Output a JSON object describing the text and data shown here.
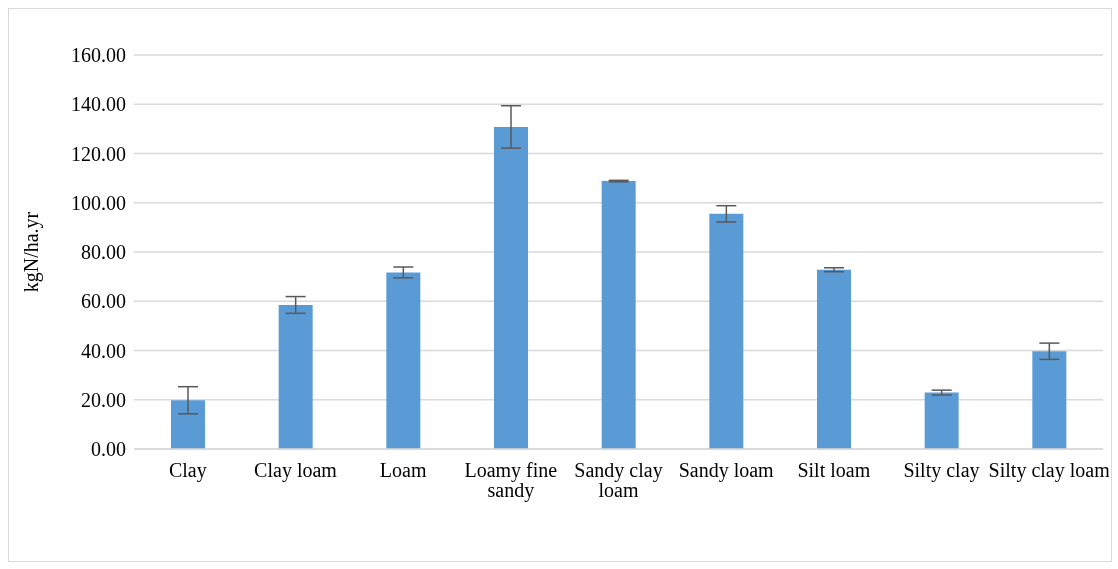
{
  "chart_data": {
    "type": "bar",
    "ylabel": "kgN/ha.yr",
    "categories": [
      "Clay",
      "Clay loam",
      "Loam",
      "Loamy fine sandy",
      "Sandy clay loam",
      "Sandy loam",
      "Silt loam",
      "Silty clay",
      "Silty clay loam"
    ],
    "values": [
      19.8,
      58.5,
      71.7,
      130.8,
      108.8,
      95.5,
      72.8,
      22.9,
      39.7
    ],
    "errors": [
      5.5,
      3.4,
      2.2,
      8.6,
      0.3,
      3.3,
      0.8,
      1.0,
      3.3
    ],
    "color": "#5b9bd5",
    "ylim": [
      0,
      160
    ],
    "yticks": [
      {
        "value": 0,
        "label": "0.00"
      },
      {
        "value": 20,
        "label": "20.00"
      },
      {
        "value": 40,
        "label": "40.00"
      },
      {
        "value": 60,
        "label": "60.00"
      },
      {
        "value": 80,
        "label": "80.00"
      },
      {
        "value": 100,
        "label": "100.00"
      },
      {
        "value": 120,
        "label": "120.00"
      },
      {
        "value": 140,
        "label": "140.00"
      },
      {
        "value": 160,
        "label": "160.00"
      }
    ],
    "grid": "y"
  }
}
